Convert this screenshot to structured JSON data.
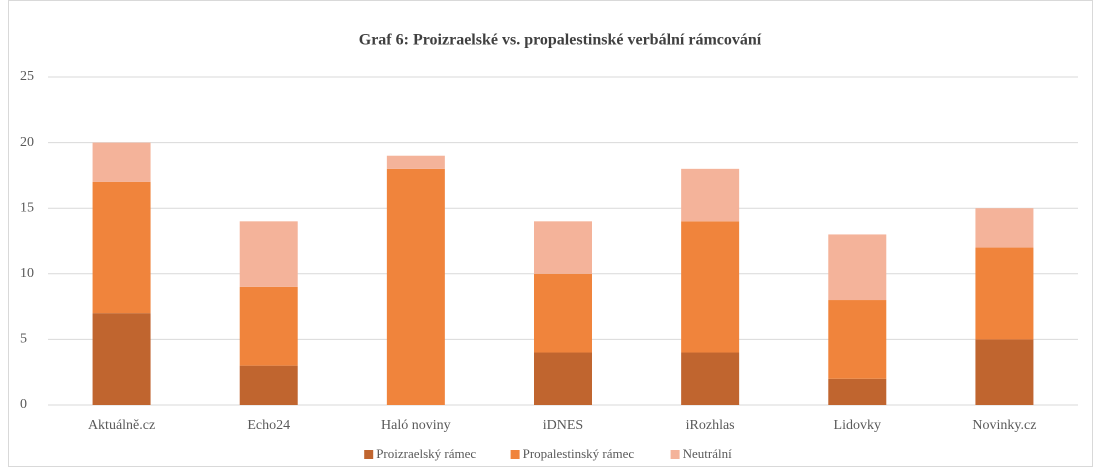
{
  "chart_data": {
    "type": "stacked-bar",
    "title": "Graf 6: Proizraelské vs. propalestinské verbální rámcování",
    "categories": [
      "Aktuálně.cz",
      "Echo24",
      "Haló noviny",
      "iDNES",
      "iRozhlas",
      "Lidovky",
      "Novinky.cz"
    ],
    "series": [
      {
        "name": "Proizraelský rámec",
        "color": "#c0652f",
        "values": [
          7,
          3,
          0,
          4,
          4,
          2,
          5
        ]
      },
      {
        "name": "Propalestinský rámec",
        "color": "#f0843c",
        "values": [
          10,
          6,
          18,
          6,
          10,
          6,
          7
        ]
      },
      {
        "name": "Neutrální",
        "color": "#f4b39a",
        "values": [
          3,
          5,
          1,
          4,
          4,
          5,
          3
        ]
      }
    ],
    "ylim": [
      0,
      25
    ],
    "yticks": [
      0,
      5,
      10,
      15,
      20,
      25
    ],
    "grid": true,
    "legend": "bottom"
  }
}
